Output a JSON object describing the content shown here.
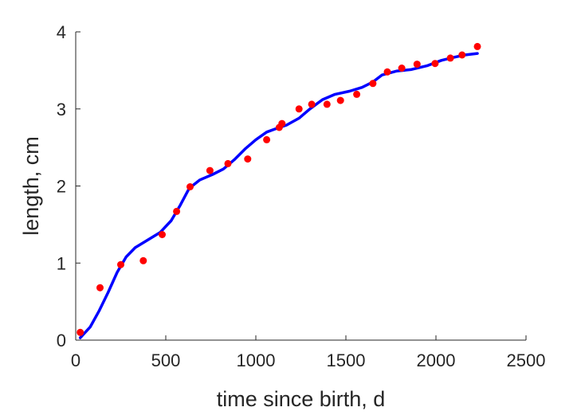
{
  "chart_data": {
    "type": "scatter",
    "title": "",
    "xlabel": "time since birth, d",
    "ylabel": "length, cm",
    "xlim": [
      0,
      2500
    ],
    "ylim": [
      0,
      4
    ],
    "xticks": [
      0,
      500,
      1000,
      1500,
      2000,
      2500
    ],
    "yticks": [
      0,
      1,
      2,
      3,
      4
    ],
    "xtick_labels": [
      "0",
      "500",
      "1000",
      "1500",
      "2000",
      "2500"
    ],
    "ytick_labels": [
      "0",
      "1",
      "2",
      "3",
      "4"
    ],
    "grid": false,
    "legend": "none",
    "series": [
      {
        "kind": "scatter",
        "color": "#ff0000",
        "points": [
          [
            25,
            0.1
          ],
          [
            135,
            0.68
          ],
          [
            250,
            0.98
          ],
          [
            375,
            1.03
          ],
          [
            480,
            1.37
          ],
          [
            560,
            1.67
          ],
          [
            635,
            1.99
          ],
          [
            745,
            2.2
          ],
          [
            845,
            2.29
          ],
          [
            955,
            2.35
          ],
          [
            1060,
            2.6
          ],
          [
            1130,
            2.76
          ],
          [
            1145,
            2.81
          ],
          [
            1240,
            3.0
          ],
          [
            1310,
            3.06
          ],
          [
            1395,
            3.06
          ],
          [
            1470,
            3.11
          ],
          [
            1560,
            3.19
          ],
          [
            1650,
            3.33
          ],
          [
            1730,
            3.48
          ],
          [
            1810,
            3.53
          ],
          [
            1895,
            3.58
          ],
          [
            1995,
            3.59
          ],
          [
            2080,
            3.66
          ],
          [
            2145,
            3.7
          ],
          [
            2230,
            3.81
          ]
        ]
      },
      {
        "kind": "line",
        "color": "#0000ff",
        "points": [
          [
            25,
            0.03
          ],
          [
            80,
            0.17
          ],
          [
            130,
            0.38
          ],
          [
            180,
            0.62
          ],
          [
            230,
            0.88
          ],
          [
            280,
            1.08
          ],
          [
            330,
            1.2
          ],
          [
            400,
            1.3
          ],
          [
            470,
            1.4
          ],
          [
            530,
            1.55
          ],
          [
            580,
            1.75
          ],
          [
            630,
            1.97
          ],
          [
            690,
            2.08
          ],
          [
            760,
            2.15
          ],
          [
            820,
            2.22
          ],
          [
            880,
            2.34
          ],
          [
            940,
            2.48
          ],
          [
            1000,
            2.6
          ],
          [
            1060,
            2.7
          ],
          [
            1120,
            2.75
          ],
          [
            1170,
            2.79
          ],
          [
            1240,
            2.88
          ],
          [
            1300,
            3.0
          ],
          [
            1370,
            3.12
          ],
          [
            1440,
            3.19
          ],
          [
            1520,
            3.23
          ],
          [
            1590,
            3.28
          ],
          [
            1650,
            3.35
          ],
          [
            1700,
            3.44
          ],
          [
            1780,
            3.49
          ],
          [
            1860,
            3.51
          ],
          [
            1950,
            3.56
          ],
          [
            2030,
            3.63
          ],
          [
            2100,
            3.67
          ],
          [
            2160,
            3.7
          ],
          [
            2230,
            3.72
          ]
        ]
      }
    ]
  }
}
